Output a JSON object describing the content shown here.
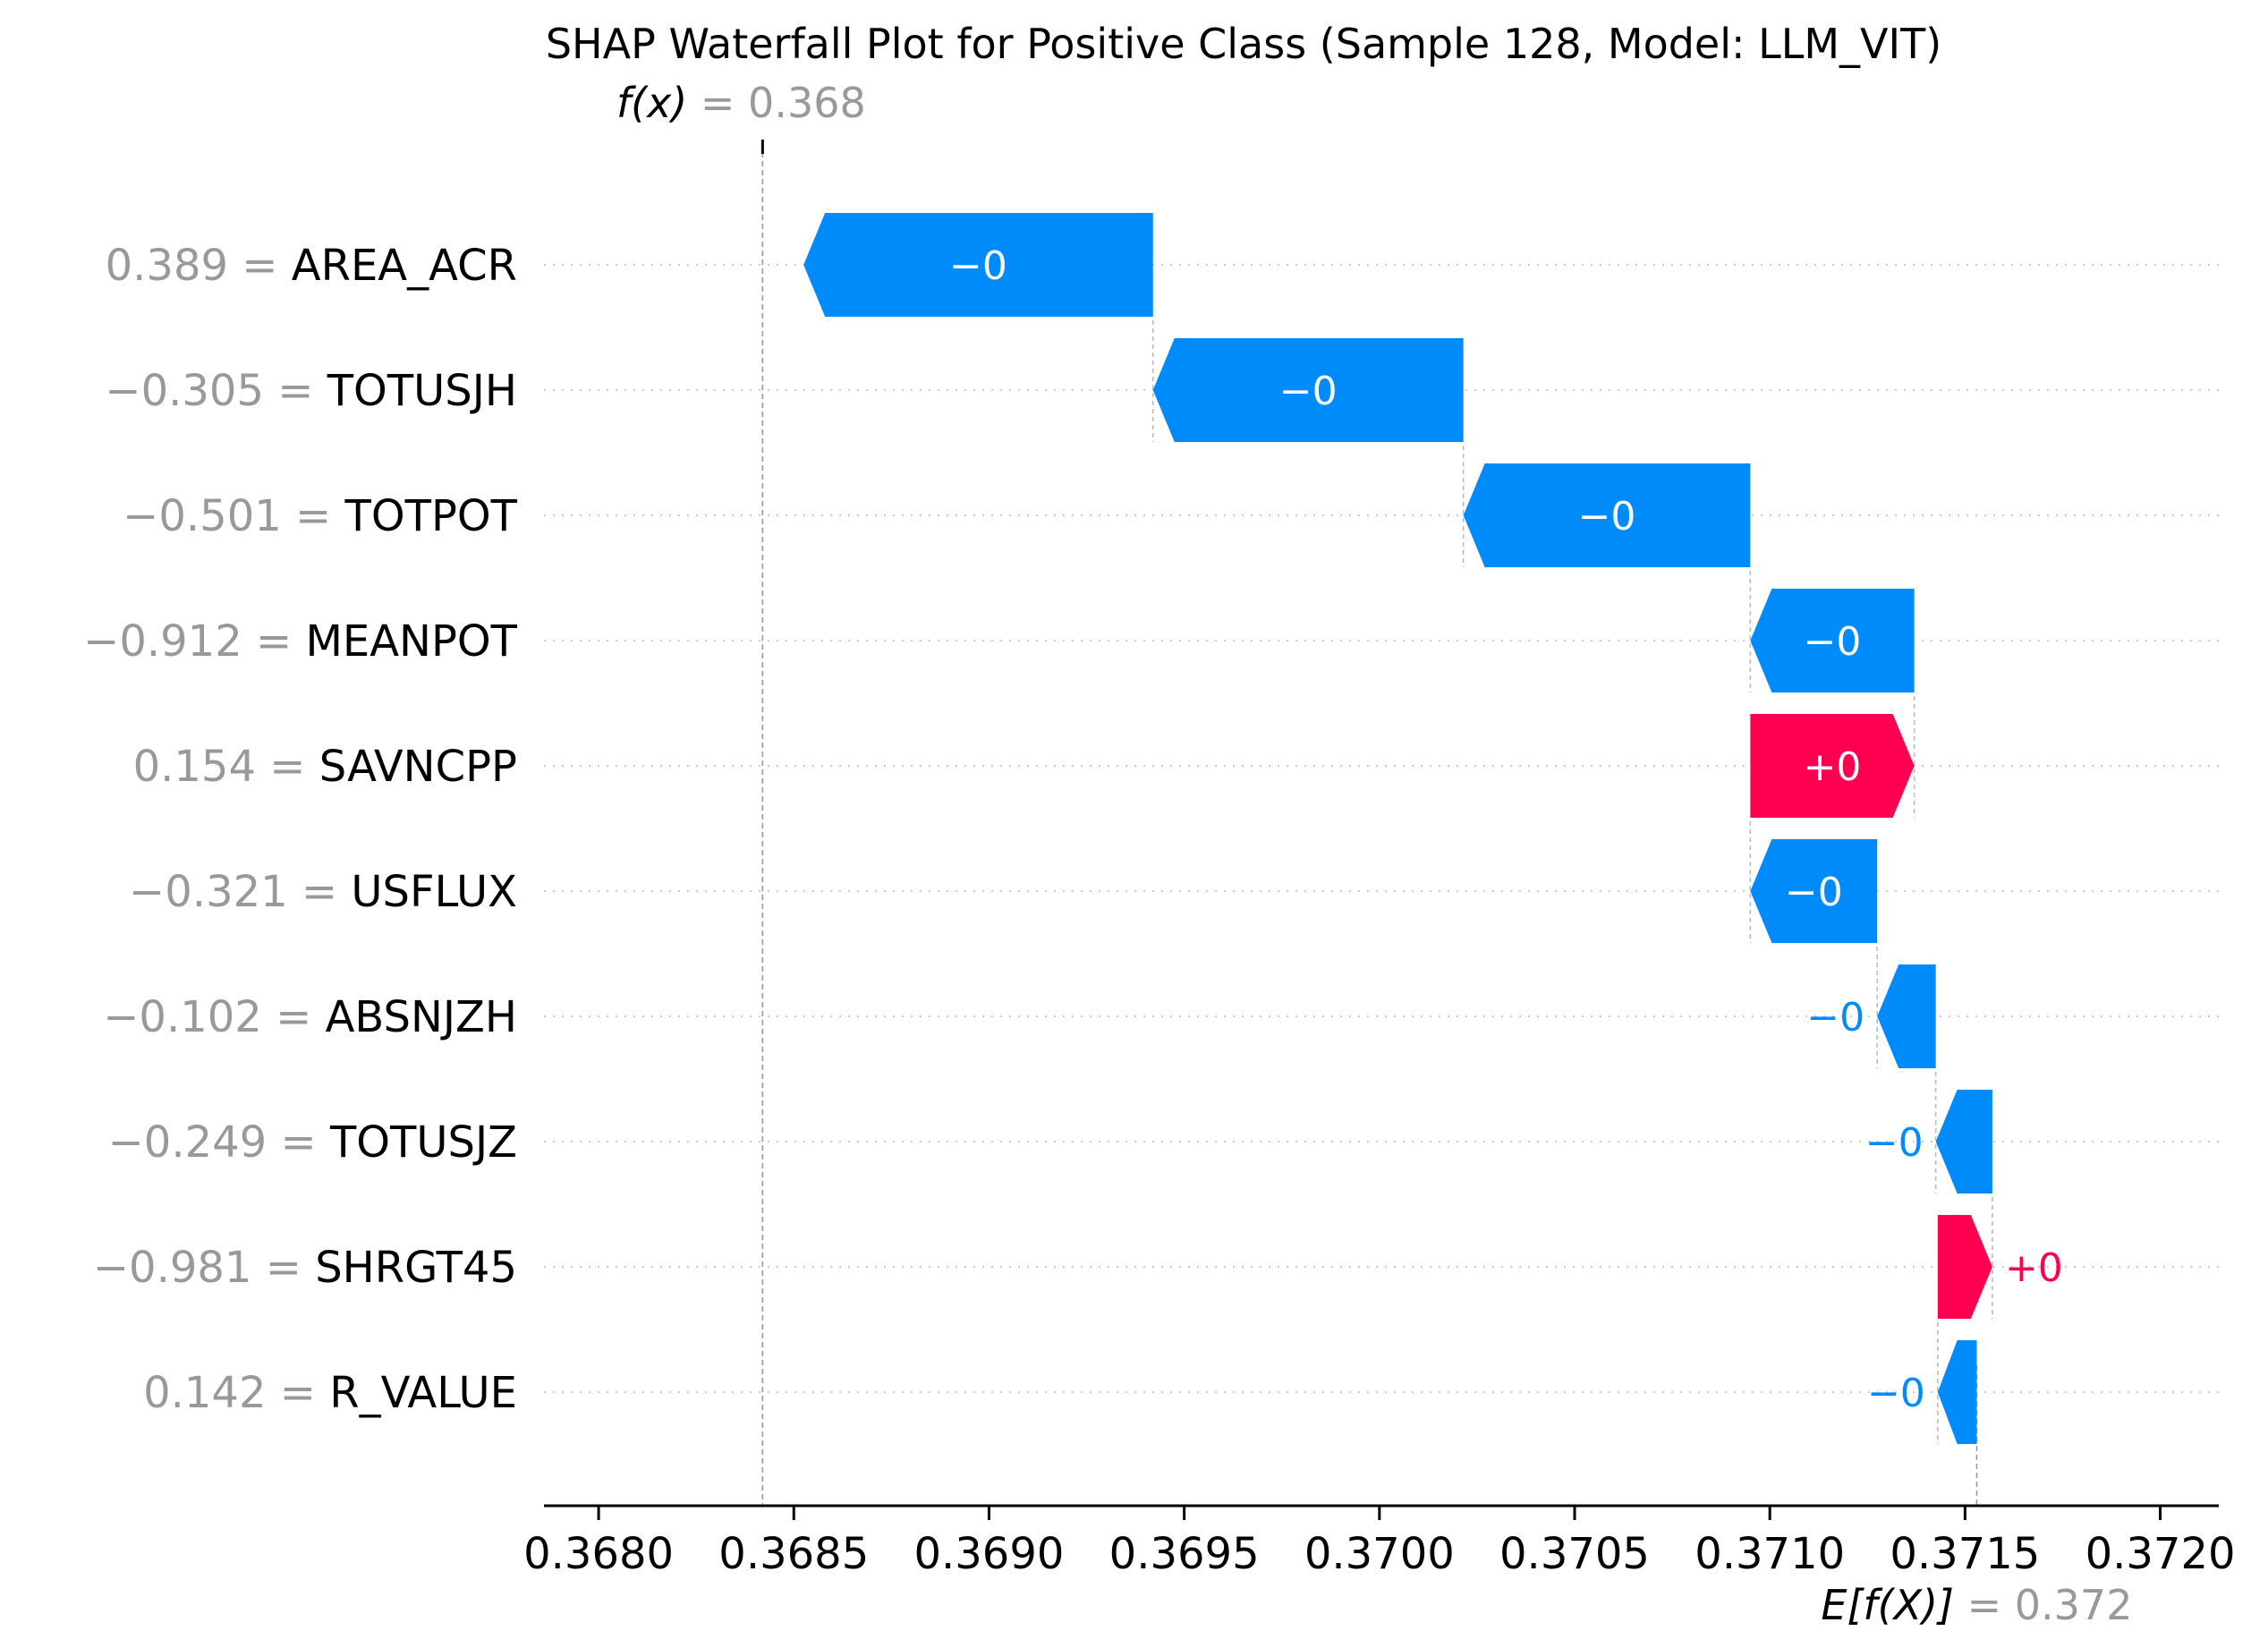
{
  "chart_data": {
    "type": "waterfall",
    "title": "SHAP Waterfall Plot for Positive Class (Sample 128, Model: LLM_VIT)",
    "fx_prefix": "f(x)",
    "fx_suffix": " = 0.368",
    "efx_prefix": "E[f(X)]",
    "efx_suffix": " = 0.372",
    "fx_value": 0.36842,
    "base_value": 0.37153,
    "xlim": [
      0.36786,
      0.37215
    ],
    "x_ticks": [
      0.368,
      0.3685,
      0.369,
      0.3695,
      0.37,
      0.3705,
      0.371,
      0.3715,
      0.372
    ],
    "x_tick_labels": [
      "0.3680",
      "0.3685",
      "0.3690",
      "0.3695",
      "0.3700",
      "0.3705",
      "0.3710",
      "0.3715",
      "0.3720"
    ],
    "colors": {
      "positive": "#ff0051",
      "negative": "#008bfb",
      "axis": "#000000",
      "muted": "#999999",
      "grid": "#cccccc"
    },
    "features": [
      {
        "value_label": "0.389",
        "name": "AREA_ACR",
        "shap": -0.000895,
        "label": "−0"
      },
      {
        "value_label": "−0.305",
        "name": "TOTUSJH",
        "shap": -0.000795,
        "label": "−0"
      },
      {
        "value_label": "−0.501",
        "name": "TOTPOT",
        "shap": -0.000735,
        "label": "−0"
      },
      {
        "value_label": "−0.912",
        "name": "MEANPOT",
        "shap": -0.00042,
        "label": "−0"
      },
      {
        "value_label": "0.154",
        "name": "SAVNCPP",
        "shap": 0.00042,
        "label": "+0"
      },
      {
        "value_label": "−0.321",
        "name": "USFLUX",
        "shap": -0.000325,
        "label": "−0"
      },
      {
        "value_label": "−0.102",
        "name": "ABSNJZH",
        "shap": -0.00015,
        "label": "−0"
      },
      {
        "value_label": "−0.249",
        "name": "TOTUSJZ",
        "shap": -0.000145,
        "label": "−0"
      },
      {
        "value_label": "−0.981",
        "name": "SHRGT45",
        "shap": 0.00014,
        "label": "+0"
      },
      {
        "value_label": "0.142",
        "name": "R_VALUE",
        "shap": -0.0001,
        "label": "−0"
      }
    ]
  }
}
